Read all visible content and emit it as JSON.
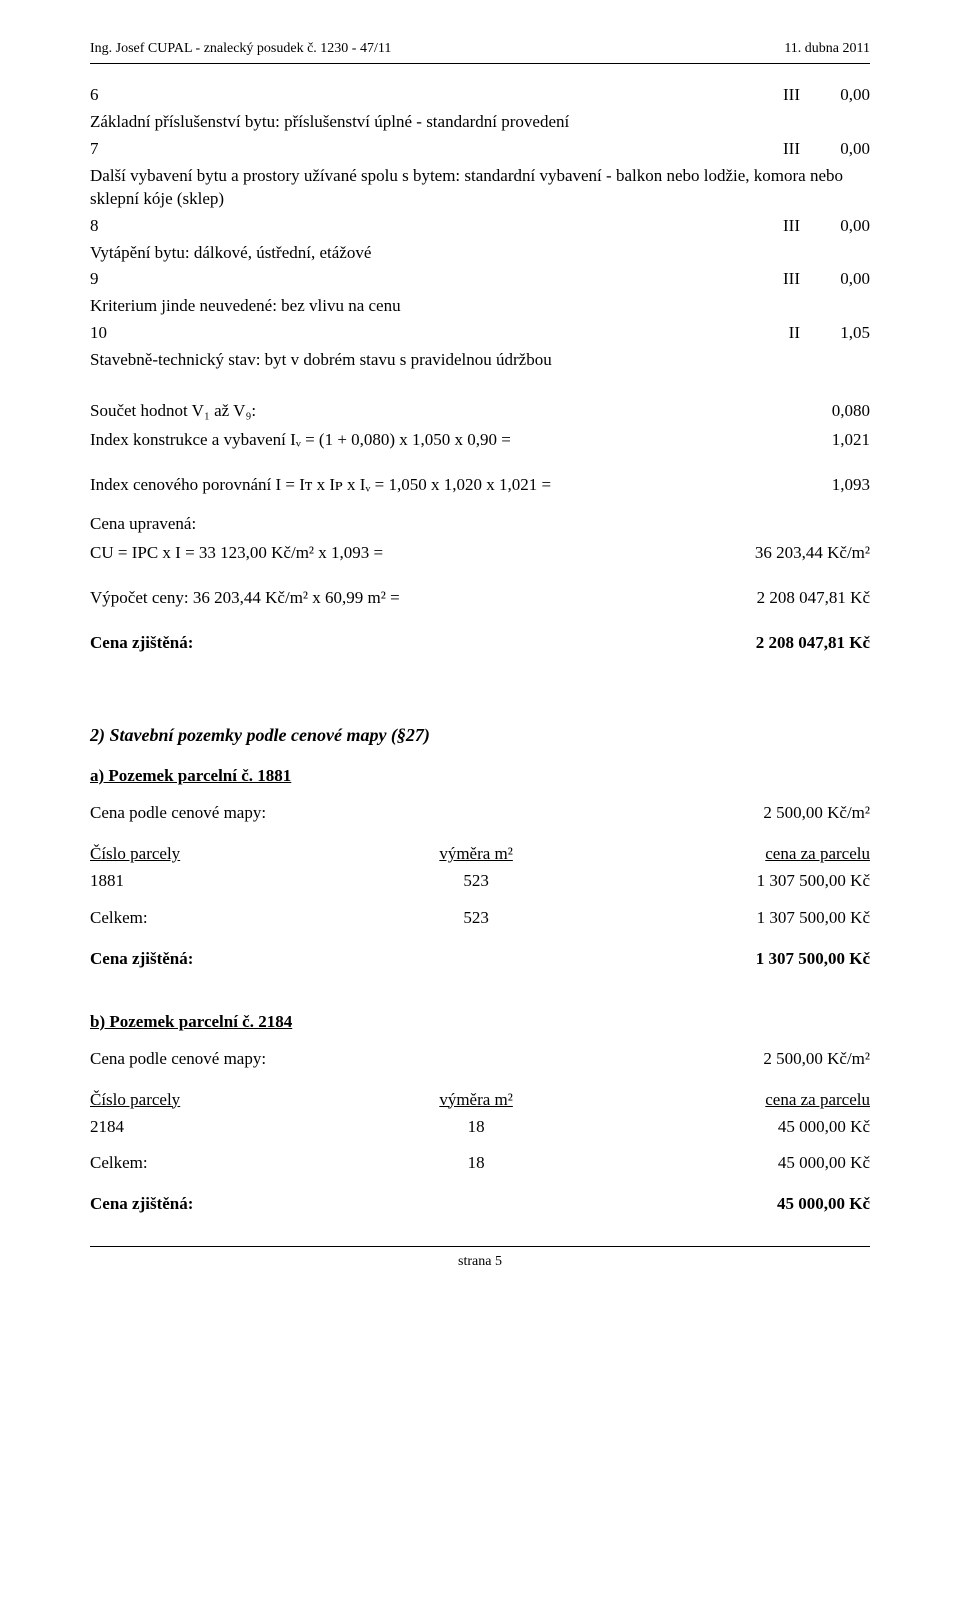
{
  "header": {
    "left": "Ing. Josef CUPAL - znalecký posudek č. 1230 - 47/11",
    "right": "11. dubna 2011"
  },
  "items": [
    {
      "num": "6",
      "text1": "",
      "text2": "Základní příslušenství bytu: příslušenství úplné - standardní provedení",
      "col": "III",
      "val": "0,00"
    },
    {
      "num": "7",
      "text1": "",
      "text2": "Další vybavení bytu a prostory užívané spolu s bytem: standardní vybavení - balkon nebo lodžie, komora nebo sklepní kóje (sklep)",
      "col": "III",
      "val": "0,00"
    },
    {
      "num": "8",
      "text1": "",
      "text2": "Vytápění bytu: dálkové, ústřední, etážové",
      "col": "III",
      "val": "0,00"
    },
    {
      "num": "9",
      "text1": "",
      "text2": "Kriterium jinde neuvedené: bez vlivu na cenu",
      "col": "III",
      "val": "0,00"
    },
    {
      "num": "10",
      "text1": "",
      "text2": "Stavebně-technický stav: byt v dobrém stavu s pravidelnou údržbou",
      "col": "II",
      "val": "1,05"
    }
  ],
  "calc": {
    "sum_line_l": "Součet hodnot V₁ až V₉:",
    "sum_line_r": "0,080",
    "iv_line_l": "Index konstrukce a vybavení Iᵥ = (1 + 0,080) x 1,050 x 0,90 =",
    "iv_line_r": "1,021",
    "icp_line_l": "Index cenového porovnání I = Iᴛ x Iᴘ x Iᵥ = 1,050 x 1,020 x 1,021 =",
    "icp_line_r": "1,093",
    "cu_label": "Cena upravená:",
    "cu_line_l": "CU = IPC x I = 33 123,00 Kč/m² x 1,093 =",
    "cu_line_r": "36 203,44 Kč/m²",
    "vyp_line_l": "Výpočet ceny: 36 203,44 Kč/m² x 60,99 m² =",
    "vyp_line_r": "2 208 047,81 Kč",
    "cz_line_l": "Cena zjištěná:",
    "cz_line_r": "2 208 047,81 Kč"
  },
  "section2": {
    "title": "2) Stavební pozemky podle cenové mapy (§27)",
    "a": {
      "title": "a) Pozemek parcelní č. 1881",
      "map_l": "Cena podle cenové mapy:",
      "map_r": "2 500,00 Kč/m²",
      "head_c1": "Číslo parcely",
      "head_c2": "výměra m²",
      "head_c3": "cena za parcelu",
      "row_c1": "1881",
      "row_c2": "523",
      "row_c3": "1 307 500,00 Kč",
      "sum_c1": "Celkem:",
      "sum_c2": "523",
      "sum_c3": "1 307 500,00 Kč",
      "cz_l": "Cena zjištěná:",
      "cz_r": "1 307 500,00 Kč"
    },
    "b": {
      "title": "b) Pozemek parcelní č. 2184",
      "map_l": "Cena podle cenové mapy:",
      "map_r": "2 500,00 Kč/m²",
      "head_c1": "Číslo parcely",
      "head_c2": "výměra m²",
      "head_c3": "cena za parcelu",
      "row_c1": "2184",
      "row_c2": "18",
      "row_c3": "45 000,00 Kč",
      "sum_c1": "Celkem:",
      "sum_c2": "18",
      "sum_c3": "45 000,00 Kč",
      "cz_l": "Cena zjištěná:",
      "cz_r": "45 000,00 Kč"
    }
  },
  "footer": {
    "text": "strana 5"
  }
}
